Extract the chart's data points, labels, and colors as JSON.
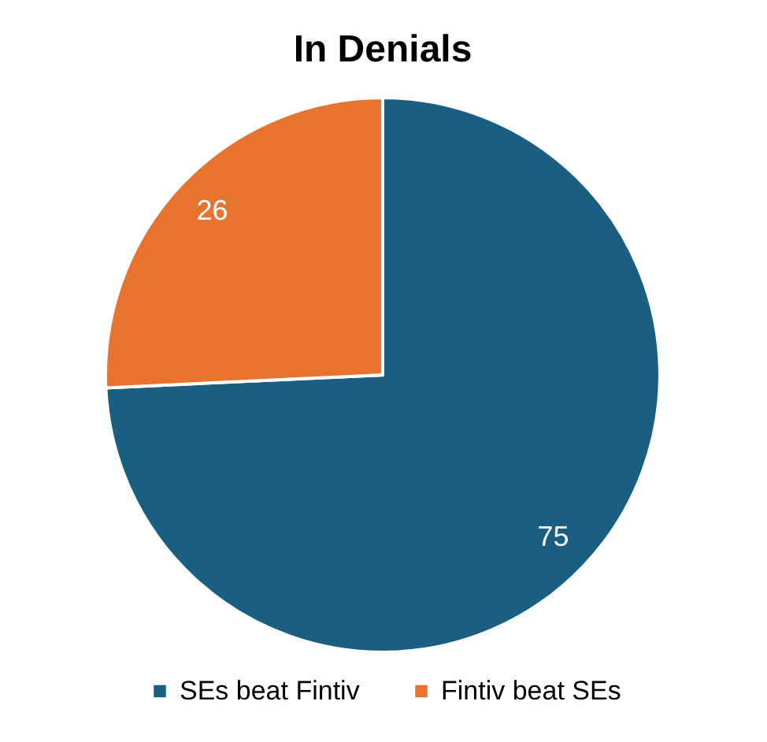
{
  "chart_data": {
    "type": "pie",
    "title": "In Denials",
    "categories": [
      "SEs beat Fintiv",
      "Fintiv beat SEs"
    ],
    "values": [
      75,
      26
    ],
    "colors": [
      "#1a5f82",
      "#e8732f"
    ],
    "data_labels": true,
    "legend": "bottom"
  }
}
